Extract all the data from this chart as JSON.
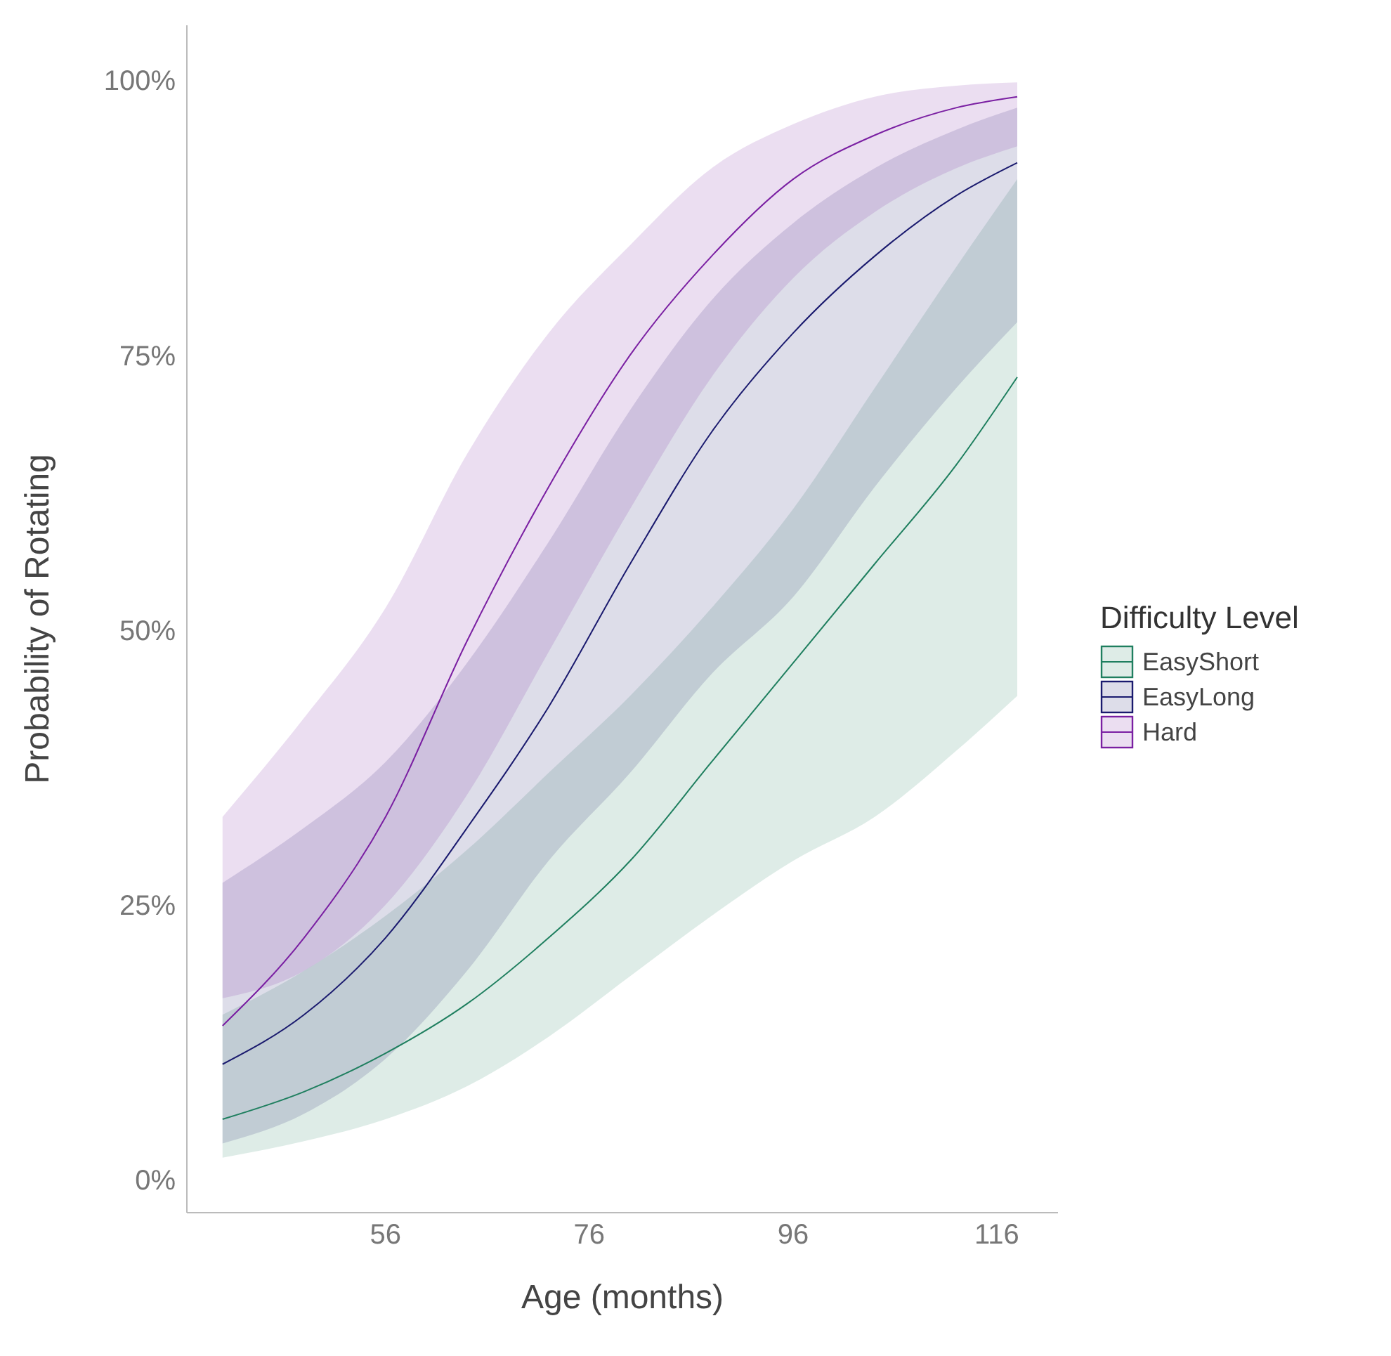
{
  "chart_data": {
    "type": "line",
    "xlabel": "Age (months)",
    "ylabel": "Probability of Rotating",
    "legend_title": "Difficulty Level",
    "legend": "right",
    "grid": false,
    "marker": "none",
    "line_style": "solid",
    "x": [
      40,
      48,
      56,
      64,
      72,
      80,
      88,
      96,
      104,
      112,
      118
    ],
    "xlim": [
      36.5,
      122
    ],
    "xticks": [
      56,
      76,
      96,
      116
    ],
    "ylim": [
      -3,
      105
    ],
    "yticks": [
      {
        "value": 0,
        "label": "0%"
      },
      {
        "value": 25,
        "label": "25%"
      },
      {
        "value": 50,
        "label": "50%"
      },
      {
        "value": 75,
        "label": "75%"
      },
      {
        "value": 100,
        "label": "100%"
      }
    ],
    "series": [
      {
        "name": "EasyShort",
        "color": "#1f7f5f",
        "values": [
          5.5,
          8,
          11.5,
          16,
          22,
          29,
          38,
          47,
          56,
          65,
          73
        ],
        "lower": [
          2,
          3.5,
          5.5,
          8.5,
          13,
          18.5,
          24,
          29,
          33,
          39,
          44
        ],
        "upper": [
          15,
          19,
          24,
          30,
          37,
          44,
          52,
          61,
          72,
          83,
          91
        ]
      },
      {
        "name": "EasyLong",
        "color": "#1a1a6e",
        "values": [
          10.5,
          15,
          22,
          32,
          43,
          56,
          68,
          77,
          84,
          89.5,
          92.5
        ],
        "lower": [
          3.3,
          6,
          11,
          19,
          29,
          37,
          46,
          53,
          63,
          72,
          78
        ],
        "upper": [
          27,
          32,
          38,
          47,
          58,
          70,
          80,
          87,
          92,
          95.5,
          97.5
        ]
      },
      {
        "name": "Hard",
        "color": "#7a1fa2",
        "values": [
          14,
          22,
          33,
          49,
          63,
          75,
          84,
          91,
          95,
          97.5,
          98.5
        ],
        "lower": [
          16.5,
          19,
          25,
          35,
          48,
          61,
          73,
          82,
          88,
          92,
          94
        ],
        "upper": [
          33,
          42,
          52,
          66,
          77,
          85,
          92,
          96,
          98.5,
          99.5,
          99.8
        ]
      }
    ]
  }
}
